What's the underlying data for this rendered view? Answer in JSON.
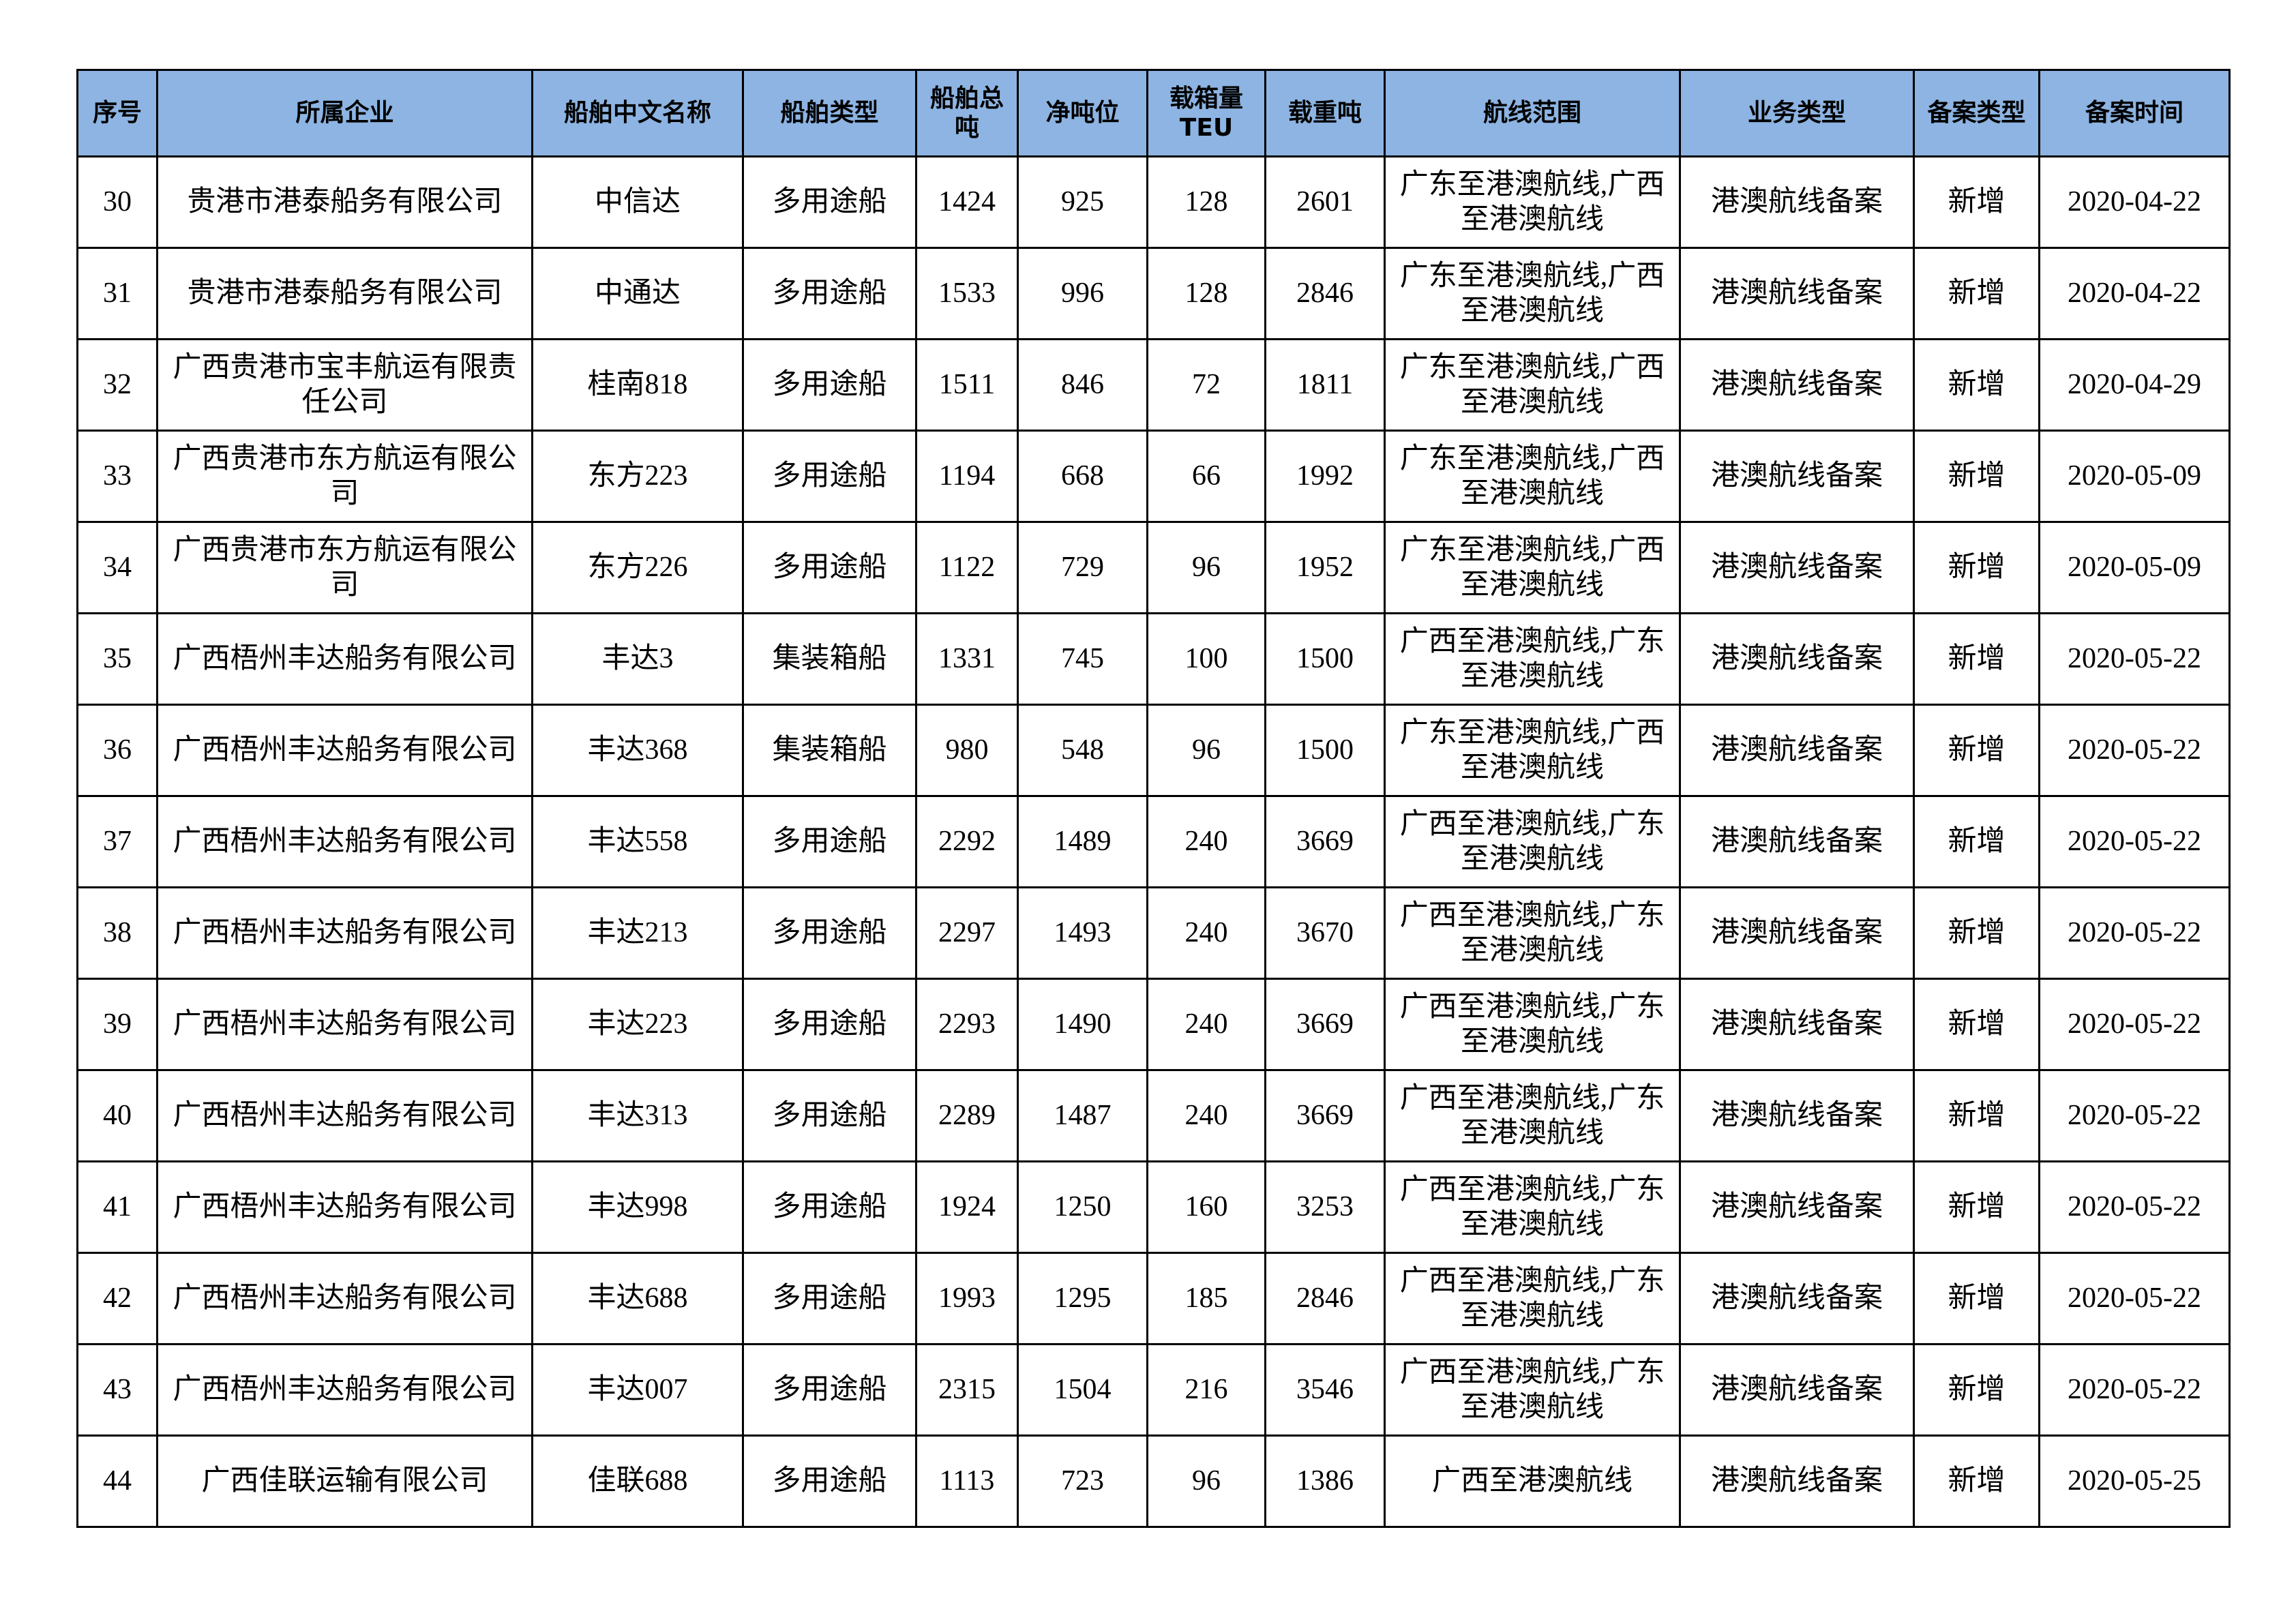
{
  "table": {
    "header": [
      "序号",
      "所属企业",
      "船舶中文名称",
      "船舶类型",
      "船舶总吨",
      "净吨位",
      "载箱量\nTEU",
      "载重吨",
      "航线范围",
      "业务类型",
      "备案类型",
      "备案时间"
    ],
    "rows": [
      [
        "30",
        "贵港市港泰船务有限公司",
        "中信达",
        "多用途船",
        "1424",
        "925",
        "128",
        "2601",
        "广东至港澳航线,广西至港澳航线",
        "港澳航线备案",
        "新增",
        "2020-04-22"
      ],
      [
        "31",
        "贵港市港泰船务有限公司",
        "中通达",
        "多用途船",
        "1533",
        "996",
        "128",
        "2846",
        "广东至港澳航线,广西至港澳航线",
        "港澳航线备案",
        "新增",
        "2020-04-22"
      ],
      [
        "32",
        "广西贵港市宝丰航运有限责任公司",
        "桂南818",
        "多用途船",
        "1511",
        "846",
        "72",
        "1811",
        "广东至港澳航线,广西至港澳航线",
        "港澳航线备案",
        "新增",
        "2020-04-29"
      ],
      [
        "33",
        "广西贵港市东方航运有限公司",
        "东方223",
        "多用途船",
        "1194",
        "668",
        "66",
        "1992",
        "广东至港澳航线,广西至港澳航线",
        "港澳航线备案",
        "新增",
        "2020-05-09"
      ],
      [
        "34",
        "广西贵港市东方航运有限公司",
        "东方226",
        "多用途船",
        "1122",
        "729",
        "96",
        "1952",
        "广东至港澳航线,广西至港澳航线",
        "港澳航线备案",
        "新增",
        "2020-05-09"
      ],
      [
        "35",
        "广西梧州丰达船务有限公司",
        "丰达3",
        "集装箱船",
        "1331",
        "745",
        "100",
        "1500",
        "广西至港澳航线,广东至港澳航线",
        "港澳航线备案",
        "新增",
        "2020-05-22"
      ],
      [
        "36",
        "广西梧州丰达船务有限公司",
        "丰达368",
        "集装箱船",
        "980",
        "548",
        "96",
        "1500",
        "广东至港澳航线,广西至港澳航线",
        "港澳航线备案",
        "新增",
        "2020-05-22"
      ],
      [
        "37",
        "广西梧州丰达船务有限公司",
        "丰达558",
        "多用途船",
        "2292",
        "1489",
        "240",
        "3669",
        "广西至港澳航线,广东至港澳航线",
        "港澳航线备案",
        "新增",
        "2020-05-22"
      ],
      [
        "38",
        "广西梧州丰达船务有限公司",
        "丰达213",
        "多用途船",
        "2297",
        "1493",
        "240",
        "3670",
        "广西至港澳航线,广东至港澳航线",
        "港澳航线备案",
        "新增",
        "2020-05-22"
      ],
      [
        "39",
        "广西梧州丰达船务有限公司",
        "丰达223",
        "多用途船",
        "2293",
        "1490",
        "240",
        "3669",
        "广西至港澳航线,广东至港澳航线",
        "港澳航线备案",
        "新增",
        "2020-05-22"
      ],
      [
        "40",
        "广西梧州丰达船务有限公司",
        "丰达313",
        "多用途船",
        "2289",
        "1487",
        "240",
        "3669",
        "广西至港澳航线,广东至港澳航线",
        "港澳航线备案",
        "新增",
        "2020-05-22"
      ],
      [
        "41",
        "广西梧州丰达船务有限公司",
        "丰达998",
        "多用途船",
        "1924",
        "1250",
        "160",
        "3253",
        "广西至港澳航线,广东至港澳航线",
        "港澳航线备案",
        "新增",
        "2020-05-22"
      ],
      [
        "42",
        "广西梧州丰达船务有限公司",
        "丰达688",
        "多用途船",
        "1993",
        "1295",
        "185",
        "2846",
        "广西至港澳航线,广东至港澳航线",
        "港澳航线备案",
        "新增",
        "2020-05-22"
      ],
      [
        "43",
        "广西梧州丰达船务有限公司",
        "丰达007",
        "多用途船",
        "2315",
        "1504",
        "216",
        "3546",
        "广西至港澳航线,广东至港澳航线",
        "港澳航线备案",
        "新增",
        "2020-05-22"
      ],
      [
        "44",
        "广西佳联运输有限公司",
        "佳联688",
        "多用途船",
        "1113",
        "723",
        "96",
        "1386",
        "广西至港澳航线",
        "港澳航线备案",
        "新增",
        "2020-05-25"
      ]
    ]
  }
}
